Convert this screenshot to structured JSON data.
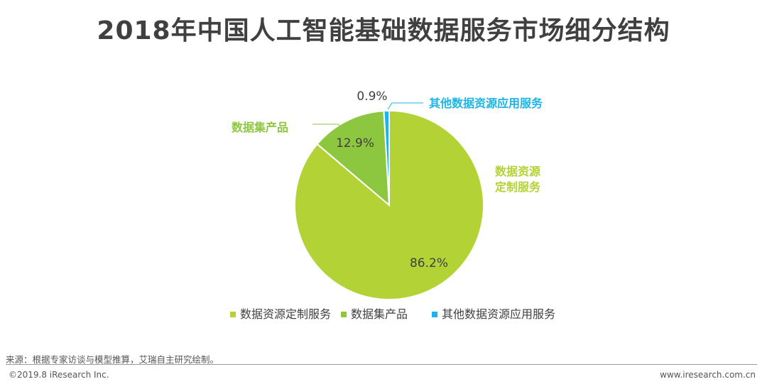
{
  "title": "2018年中国人工智能基础数据服务市场细分结构",
  "chart_data": {
    "type": "pie",
    "title": "2018年中国人工智能基础数据服务市场细分结构",
    "slices": [
      {
        "label": "数据资源定制服务",
        "value": 86.2,
        "value_label": "86.2%",
        "callout_label": "数据资源\n定制服务",
        "color": "#b2d235"
      },
      {
        "label": "数据集产品",
        "value": 12.9,
        "value_label": "12.9%",
        "callout_label": "数据集产品",
        "color": "#8dc63f"
      },
      {
        "label": "其他数据资源应用服务",
        "value": 0.9,
        "value_label": "0.9%",
        "callout_label": "其他数据资源应用服务",
        "color": "#1cb5e5"
      }
    ],
    "legend_position": "bottom"
  },
  "footer": {
    "source": "来源：根据专家访谈与模型推算，艾瑞自主研究绘制。",
    "copyright": "©2019.8 iResearch Inc.",
    "website": "www.iresearch.com.cn"
  }
}
